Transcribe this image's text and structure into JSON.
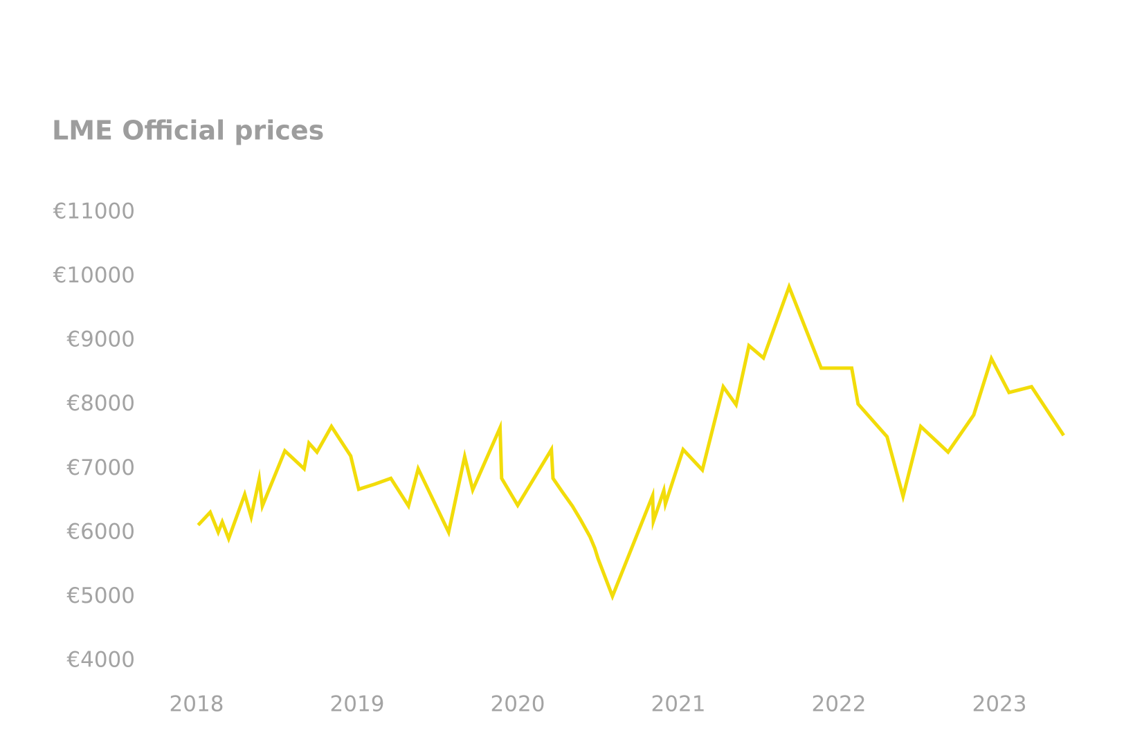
{
  "chart_data": {
    "type": "line",
    "title": "LME Official prices",
    "color": "#f2dc0a",
    "x": [
      2018.01,
      2018.085,
      2018.135,
      2018.16,
      2018.2,
      2018.3,
      2018.34,
      2018.39,
      2018.41,
      2018.55,
      2018.67,
      2018.7,
      2018.75,
      2018.84,
      2018.96,
      2019.01,
      2019.11,
      2019.21,
      2019.32,
      2019.38,
      2019.57,
      2019.67,
      2019.72,
      2019.89,
      2019.9,
      2020.0,
      2020.21,
      2020.22,
      2020.28,
      2020.34,
      2020.39,
      2020.45,
      2020.48,
      2020.5,
      2020.59,
      2020.84,
      2020.845,
      2020.91,
      2020.92,
      2021.03,
      2021.15,
      2021.28,
      2021.36,
      2021.44,
      2021.53,
      2021.69,
      2021.89,
      2022.08,
      2022.12,
      2022.3,
      2022.4,
      2022.51,
      2022.68,
      2022.84,
      2022.95,
      2023.06,
      2023.2,
      2023.4
    ],
    "values": [
      6120,
      6320,
      6010,
      6170,
      5910,
      6600,
      6250,
      6840,
      6420,
      7280,
      7000,
      7400,
      7260,
      7660,
      7200,
      6680,
      6760,
      6850,
      6420,
      7000,
      6010,
      7190,
      6670,
      7640,
      6850,
      6430,
      7300,
      6850,
      6630,
      6420,
      6210,
      5940,
      5760,
      5600,
      5010,
      6580,
      6180,
      6660,
      6450,
      7300,
      6980,
      8280,
      8000,
      8920,
      8730,
      9840,
      8570,
      8570,
      8010,
      7500,
      6570,
      7660,
      7260,
      7840,
      8720,
      8190,
      8280,
      7520
    ],
    "xlim": [
      2017.9,
      2023.5
    ],
    "xticks": [
      2018,
      2019,
      2020,
      2021,
      2022,
      2023
    ],
    "ylim": [
      4000,
      11000
    ],
    "yticks": [
      {
        "value": 4000,
        "label": "€4000"
      },
      {
        "value": 5000,
        "label": "€5000"
      },
      {
        "value": 6000,
        "label": "€6000"
      },
      {
        "value": 7000,
        "label": "€7000"
      },
      {
        "value": 8000,
        "label": "€8000"
      },
      {
        "value": 9000,
        "label": "€9000"
      },
      {
        "value": 10000,
        "label": "€10000"
      },
      {
        "value": 11000,
        "label": "€11000"
      }
    ],
    "grid": false
  }
}
